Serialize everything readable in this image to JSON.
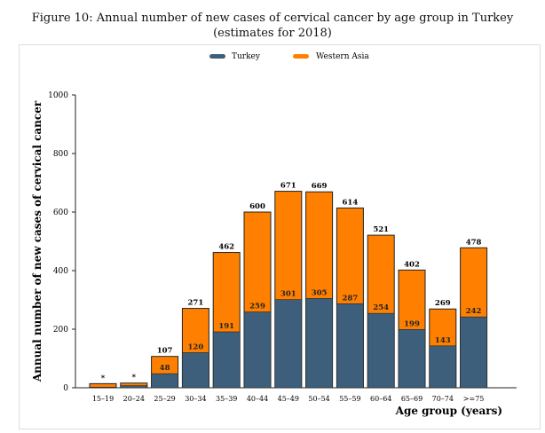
{
  "chart_data": {
    "type": "bar",
    "title": "Figure 10: Annual number of new cases of cervical cancer by age group in Turkey (estimates for 2018)",
    "xlabel": "Age group (years)",
    "ylabel": "Annual number of new cases of cervical cancer",
    "ylim": [
      0,
      1000
    ],
    "yticks": [
      0,
      200,
      400,
      600,
      800,
      1000
    ],
    "grid": false,
    "legend": "top-center",
    "categories": [
      "15–19",
      "20–24",
      "25–29",
      "30–34",
      "35–39",
      "40–44",
      "45–49",
      "50–54",
      "55–59",
      "60–64",
      "65–69",
      "70–74",
      ">=75"
    ],
    "series": [
      {
        "name": "Turkey",
        "color": "#3d5f7b",
        "values": [
          2,
          7,
          48,
          120,
          191,
          259,
          301,
          305,
          287,
          254,
          199,
          143,
          242
        ],
        "labels": [
          "*",
          "",
          "48",
          "120",
          "191",
          "259",
          "301",
          "305",
          "287",
          "254",
          "199",
          "143",
          "242"
        ]
      },
      {
        "name": "Western Asia",
        "color": "#ff8000",
        "values": [
          14,
          16,
          107,
          271,
          462,
          600,
          671,
          669,
          614,
          521,
          402,
          269,
          478
        ],
        "labels": [
          "*",
          "*",
          "107",
          "271",
          "462",
          "600",
          "671",
          "669",
          "614",
          "521",
          "402",
          "269",
          "478"
        ]
      }
    ]
  }
}
